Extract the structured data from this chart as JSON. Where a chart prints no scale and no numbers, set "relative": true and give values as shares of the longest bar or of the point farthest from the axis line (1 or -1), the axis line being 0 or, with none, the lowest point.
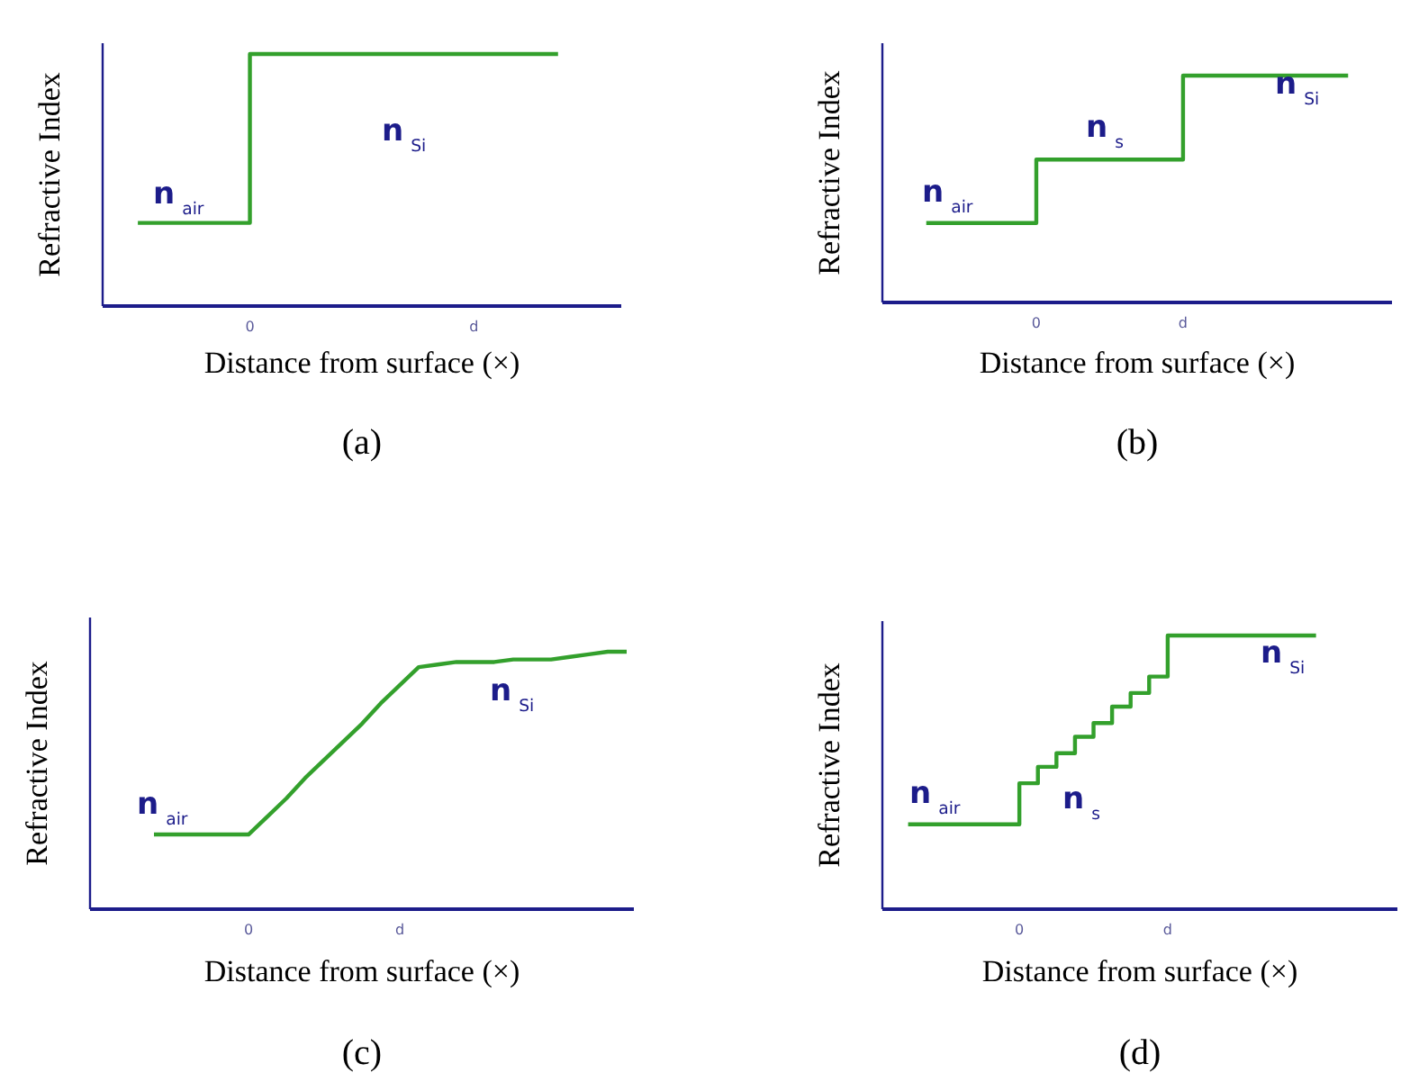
{
  "chart_data": [
    {
      "type": "step",
      "xlabel": "Distance from surface (×)",
      "ylabel": "Refractive Index",
      "relative": true,
      "categories": [
        null,
        null,
        null,
        null,
        null,
        "0",
        null,
        null,
        null,
        null,
        null,
        null,
        null,
        "d",
        null,
        null,
        null,
        null,
        null
      ],
      "series": [
        {
          "color": "#33a02c",
          "values": [
            null,
            0.33,
            0.33,
            0.33,
            0.33,
            1,
            1,
            1,
            1,
            1,
            1,
            1,
            1,
            1,
            1,
            1,
            1,
            null,
            null
          ]
        }
      ],
      "annotations": [
        "n$_{air}$",
        "n$_{Si}$",
        "(a)"
      ]
    },
    {
      "type": "step",
      "xlabel": "Distance from surface (×)",
      "ylabel": "Refractive Index",
      "relative": true,
      "categories": [
        null,
        null,
        null,
        null,
        null,
        null,
        null,
        null,
        "0",
        null,
        null,
        null,
        null,
        null,
        null,
        null,
        "d",
        null,
        null,
        null,
        null,
        null,
        null,
        null,
        null,
        null,
        null,
        null
      ],
      "series": [
        {
          "color": "#33a02c",
          "values": [
            null,
            null,
            0.35,
            0.35,
            0.35,
            0.35,
            0.35,
            0.35,
            0.63,
            0.63,
            0.63,
            0.63,
            0.63,
            0.63,
            0.63,
            0.63,
            1,
            1,
            1,
            1,
            1,
            1,
            1,
            1,
            1,
            1,
            null,
            null
          ]
        }
      ],
      "annotations": [
        "n$_{air}$",
        "n$_{s}$",
        "n$_{Si}$",
        "(b)"
      ]
    },
    {
      "type": "line",
      "xlabel": "Distance from surface (×)",
      "ylabel": "Refractive Index",
      "relative": true,
      "categories": [
        null,
        null,
        null,
        null,
        null,
        null,
        null,
        null,
        "0",
        null,
        null,
        null,
        null,
        null,
        null,
        null,
        "d",
        null,
        null,
        null,
        null,
        null,
        null,
        null,
        null,
        null,
        null,
        null,
        null
      ],
      "series": [
        {
          "color": "#33a02c",
          "values": [
            null,
            null,
            null,
            0.29,
            0.29,
            0.29,
            0.29,
            0.29,
            0.29,
            0.36,
            0.43,
            0.51,
            0.58,
            0.65,
            0.72,
            0.8,
            0.87,
            0.94,
            0.95,
            0.96,
            0.96,
            0.96,
            0.97,
            0.97,
            0.97,
            0.98,
            0.99,
            1,
            1
          ]
        }
      ],
      "annotations": [
        "n$_{air}$",
        "n$_{Si}$",
        "(c)"
      ]
    },
    {
      "type": "step",
      "xlabel": "Distance from surface (×)",
      "ylabel": "Refractive Index",
      "relative": true,
      "categories": [
        null,
        null,
        null,
        null,
        null,
        null,
        null,
        "0",
        null,
        null,
        null,
        null,
        null,
        null,
        null,
        "d",
        null,
        null,
        null,
        null,
        null,
        null,
        null,
        null,
        null,
        null,
        null,
        null
      ],
      "series": [
        {
          "color": "#33a02c",
          "values": [
            null,
            0.31,
            0.31,
            0.31,
            0.31,
            0.31,
            0.31,
            0.46,
            0.52,
            0.57,
            0.63,
            0.68,
            0.74,
            0.79,
            0.85,
            1,
            1,
            1,
            1,
            1,
            1,
            1,
            1,
            1,
            null,
            null,
            null,
            null
          ]
        }
      ],
      "annotations": [
        "n$_{air}$",
        "n$_{s}$",
        "n$_{Si}$",
        "(d)"
      ]
    }
  ]
}
